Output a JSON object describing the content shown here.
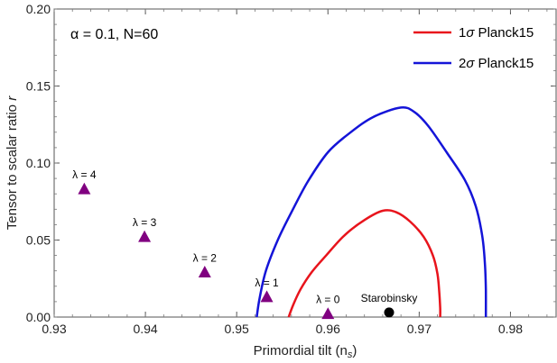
{
  "chart_data": {
    "type": "scatter",
    "annotation": "α = 0.1, N=60",
    "xlabel": "Primordial tilt (n",
    "xlabel_sub": "s",
    "xlabel_close": ")",
    "ylabel": "Tensor to scalar ratio ",
    "ylabel_var": "r",
    "xlim": [
      0.93,
      0.985
    ],
    "ylim": [
      0.0,
      0.2
    ],
    "x_ticks": [
      0.93,
      0.94,
      0.95,
      0.96,
      0.97,
      0.98
    ],
    "x_tick_labels": [
      "0.93",
      "0.94",
      "0.95",
      "0.96",
      "0.97",
      "0.98"
    ],
    "y_ticks": [
      0.0,
      0.05,
      0.1,
      0.15,
      0.2
    ],
    "y_tick_labels": [
      "0.00",
      "0.05",
      "0.10",
      "0.15",
      "0.20"
    ],
    "points": [
      {
        "label": "λ = 4",
        "x": 0.9333,
        "y": 0.083,
        "marker": "triangle",
        "color": "#800080"
      },
      {
        "label": "λ = 3",
        "x": 0.9399,
        "y": 0.052,
        "marker": "triangle",
        "color": "#800080"
      },
      {
        "label": "λ = 2",
        "x": 0.9465,
        "y": 0.029,
        "marker": "triangle",
        "color": "#800080"
      },
      {
        "label": "λ = 1",
        "x": 0.9533,
        "y": 0.013,
        "marker": "triangle",
        "color": "#800080"
      },
      {
        "label": "λ = 0",
        "x": 0.96,
        "y": 0.002,
        "marker": "triangle",
        "color": "#800080"
      },
      {
        "label": "Starobinsky",
        "x": 0.9667,
        "y": 0.003,
        "marker": "circle",
        "color": "#000000"
      }
    ],
    "contours": [
      {
        "name": "1σ Planck15",
        "legend_prefix": "1",
        "legend_sigma": "σ",
        "legend_suffix": " Planck15",
        "color": "#e8141c",
        "points": [
          [
            0.9557,
            0.0
          ],
          [
            0.9562,
            0.008
          ],
          [
            0.957,
            0.018
          ],
          [
            0.9582,
            0.029
          ],
          [
            0.9598,
            0.04
          ],
          [
            0.9618,
            0.053
          ],
          [
            0.964,
            0.063
          ],
          [
            0.966,
            0.069
          ],
          [
            0.9675,
            0.068
          ],
          [
            0.969,
            0.062
          ],
          [
            0.9705,
            0.052
          ],
          [
            0.9715,
            0.04
          ],
          [
            0.972,
            0.028
          ],
          [
            0.9722,
            0.016
          ],
          [
            0.9723,
            0.006
          ],
          [
            0.9723,
            0.0
          ]
        ]
      },
      {
        "name": "2σ Planck15",
        "legend_prefix": "2",
        "legend_sigma": "σ",
        "legend_suffix": " Planck15",
        "color": "#1414d8",
        "points": [
          [
            0.9522,
            0.0
          ],
          [
            0.9525,
            0.012
          ],
          [
            0.9532,
            0.03
          ],
          [
            0.9545,
            0.05
          ],
          [
            0.956,
            0.068
          ],
          [
            0.9578,
            0.088
          ],
          [
            0.96,
            0.107
          ],
          [
            0.9625,
            0.12
          ],
          [
            0.965,
            0.13
          ],
          [
            0.968,
            0.136
          ],
          [
            0.9695,
            0.133
          ],
          [
            0.971,
            0.124
          ],
          [
            0.973,
            0.107
          ],
          [
            0.975,
            0.089
          ],
          [
            0.9762,
            0.072
          ],
          [
            0.9769,
            0.053
          ],
          [
            0.9772,
            0.035
          ],
          [
            0.9773,
            0.018
          ],
          [
            0.9773,
            0.0
          ]
        ]
      }
    ]
  }
}
